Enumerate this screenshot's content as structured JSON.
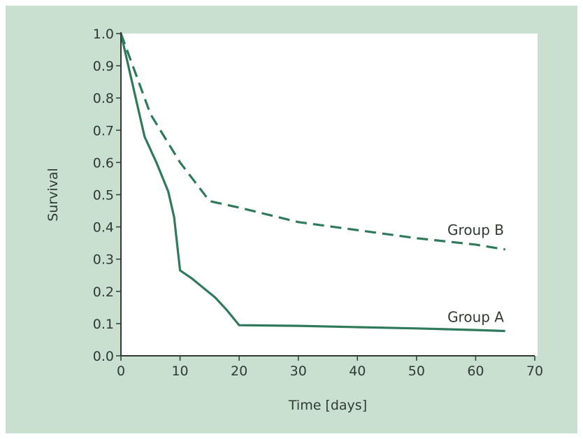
{
  "chart_data": {
    "type": "line",
    "xlabel": "Time [days]",
    "ylabel": "Survival",
    "xlim": [
      0,
      70
    ],
    "ylim": [
      0,
      1.0
    ],
    "xticks": [
      0,
      10,
      20,
      30,
      40,
      50,
      60,
      70
    ],
    "xtick_labels": [
      "0",
      "10",
      "20",
      "30",
      "40",
      "50",
      "60",
      "70"
    ],
    "yticks": [
      0,
      0.1,
      0.2,
      0.3,
      0.4,
      0.5,
      0.6,
      0.7,
      0.8,
      0.9,
      1.0
    ],
    "ytick_labels": [
      "0.0",
      "0.1",
      "0.2",
      "0.3",
      "0.4",
      "0.5",
      "0.6",
      "0.7",
      "0.8",
      "0.9",
      "1.0"
    ],
    "grid": false,
    "series": [
      {
        "name": "Group A",
        "style": "solid",
        "color": "#2e7a5a",
        "x": [
          0,
          2,
          4,
          6,
          8,
          9,
          10,
          12,
          14,
          16,
          18,
          20,
          30,
          40,
          50,
          60,
          65
        ],
        "y": [
          1.0,
          0.84,
          0.68,
          0.6,
          0.51,
          0.43,
          0.265,
          0.24,
          0.21,
          0.18,
          0.14,
          0.095,
          0.093,
          0.089,
          0.085,
          0.08,
          0.077
        ]
      },
      {
        "name": "Group B",
        "style": "dashed",
        "color": "#2e7a5a",
        "x": [
          0,
          2,
          5,
          10,
          15,
          20,
          30,
          40,
          50,
          60,
          65
        ],
        "y": [
          1.0,
          0.9,
          0.75,
          0.6,
          0.48,
          0.46,
          0.415,
          0.39,
          0.365,
          0.345,
          0.33
        ]
      }
    ]
  }
}
